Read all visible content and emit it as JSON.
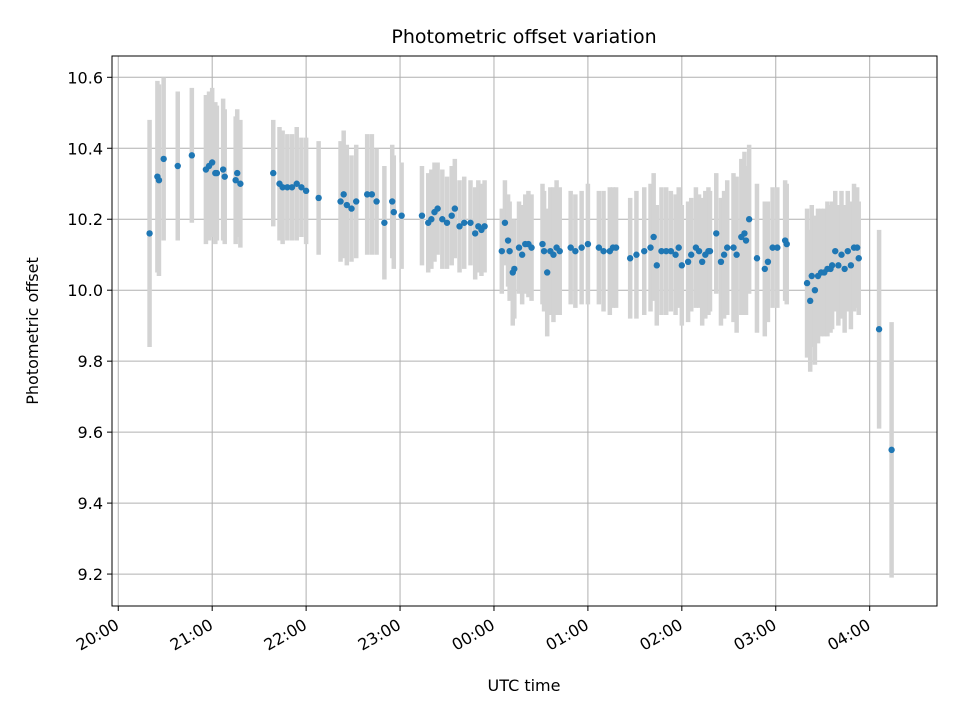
{
  "chart_data": {
    "type": "scatter",
    "title": "Photometric offset variation",
    "xlabel": "UTC time",
    "ylabel": "Photometric offset",
    "x_ticks": [
      "20:00",
      "21:00",
      "22:00",
      "23:00",
      "00:00",
      "01:00",
      "02:00",
      "03:00",
      "04:00"
    ],
    "y_ticks": [
      "9.2",
      "9.4",
      "9.6",
      "9.8",
      "10.0",
      "10.2",
      "10.4",
      "10.6"
    ],
    "x_axis_unit": "minutes after 20:00 UTC",
    "xlim": [
      -4,
      523
    ],
    "ylim": [
      9.11,
      10.66
    ],
    "grid": true,
    "colors": {
      "points": "#1f77b4",
      "error_bars": "#d3d3d3",
      "grid": "#b0b0b0"
    },
    "series": [
      {
        "points": [
          [
            20,
            10.16,
            0.32
          ],
          [
            25,
            10.32,
            0.27
          ],
          [
            26,
            10.31,
            0.27
          ],
          [
            29,
            10.37,
            0.23
          ],
          [
            38,
            10.35,
            0.21
          ],
          [
            47,
            10.38,
            0.19
          ],
          [
            56,
            10.34,
            0.21
          ],
          [
            58,
            10.35,
            0.21
          ],
          [
            60,
            10.36,
            0.21
          ],
          [
            62,
            10.33,
            0.2
          ],
          [
            63,
            10.33,
            0.19
          ],
          [
            67,
            10.34,
            0.2
          ],
          [
            68,
            10.32,
            0.19
          ],
          [
            75,
            10.31,
            0.18
          ],
          [
            76,
            10.33,
            0.18
          ],
          [
            78,
            10.3,
            0.18
          ],
          [
            99,
            10.33,
            0.15
          ],
          [
            103,
            10.3,
            0.16
          ],
          [
            105,
            10.29,
            0.16
          ],
          [
            108,
            10.29,
            0.15
          ],
          [
            111,
            10.29,
            0.15
          ],
          [
            114,
            10.3,
            0.16
          ],
          [
            117,
            10.29,
            0.14
          ],
          [
            120,
            10.28,
            0.15
          ],
          [
            128,
            10.26,
            0.16
          ],
          [
            142,
            10.25,
            0.17
          ],
          [
            144,
            10.27,
            0.18
          ],
          [
            146,
            10.24,
            0.17
          ],
          [
            149,
            10.23,
            0.15
          ],
          [
            152,
            10.25,
            0.16
          ],
          [
            159,
            10.27,
            0.17
          ],
          [
            162,
            10.27,
            0.17
          ],
          [
            165,
            10.25,
            0.15
          ],
          [
            170,
            10.19,
            0.16
          ],
          [
            175,
            10.25,
            0.16
          ],
          [
            176,
            10.22,
            0.16
          ],
          [
            181,
            10.21,
            0.15
          ],
          [
            194,
            10.21,
            0.14
          ],
          [
            198,
            10.19,
            0.14
          ],
          [
            200,
            10.2,
            0.14
          ],
          [
            202,
            10.22,
            0.14
          ],
          [
            204,
            10.23,
            0.13
          ],
          [
            207,
            10.2,
            0.14
          ],
          [
            210,
            10.19,
            0.13
          ],
          [
            213,
            10.21,
            0.14
          ],
          [
            215,
            10.23,
            0.14
          ],
          [
            218,
            10.18,
            0.13
          ],
          [
            221,
            10.19,
            0.13
          ],
          [
            225,
            10.19,
            0.12
          ],
          [
            228,
            10.16,
            0.13
          ],
          [
            230,
            10.18,
            0.13
          ],
          [
            232,
            10.17,
            0.13
          ],
          [
            234,
            10.18,
            0.13
          ],
          [
            245,
            10.11,
            0.12
          ],
          [
            247,
            10.19,
            0.12
          ],
          [
            249,
            10.14,
            0.13
          ],
          [
            250,
            10.11,
            0.14
          ],
          [
            252,
            10.05,
            0.15
          ],
          [
            253,
            10.06,
            0.14
          ],
          [
            256,
            10.12,
            0.13
          ],
          [
            258,
            10.1,
            0.14
          ],
          [
            260,
            10.13,
            0.14
          ],
          [
            262,
            10.13,
            0.15
          ],
          [
            264,
            10.12,
            0.15
          ],
          [
            271,
            10.13,
            0.17
          ],
          [
            272,
            10.11,
            0.17
          ],
          [
            274,
            10.05,
            0.18
          ],
          [
            276,
            10.11,
            0.18
          ],
          [
            278,
            10.1,
            0.19
          ],
          [
            280,
            10.12,
            0.19
          ],
          [
            282,
            10.11,
            0.18
          ],
          [
            289,
            10.12,
            0.16
          ],
          [
            292,
            10.11,
            0.16
          ],
          [
            296,
            10.12,
            0.16
          ],
          [
            300,
            10.13,
            0.17
          ],
          [
            307,
            10.12,
            0.16
          ],
          [
            310,
            10.11,
            0.17
          ],
          [
            314,
            10.11,
            0.18
          ],
          [
            316,
            10.12,
            0.17
          ],
          [
            318,
            10.12,
            0.17
          ],
          [
            327,
            10.09,
            0.17
          ],
          [
            331,
            10.1,
            0.18
          ],
          [
            336,
            10.11,
            0.18
          ],
          [
            340,
            10.12,
            0.18
          ],
          [
            342,
            10.15,
            0.18
          ],
          [
            344,
            10.07,
            0.17
          ],
          [
            347,
            10.11,
            0.18
          ],
          [
            350,
            10.11,
            0.18
          ],
          [
            353,
            10.11,
            0.17
          ],
          [
            356,
            10.1,
            0.17
          ],
          [
            358,
            10.12,
            0.17
          ],
          [
            360,
            10.07,
            0.17
          ],
          [
            364,
            10.08,
            0.17
          ],
          [
            366,
            10.1,
            0.16
          ],
          [
            369,
            10.12,
            0.17
          ],
          [
            371,
            10.11,
            0.16
          ],
          [
            373,
            10.08,
            0.18
          ],
          [
            375,
            10.1,
            0.18
          ],
          [
            377,
            10.11,
            0.18
          ],
          [
            378,
            10.11,
            0.17
          ],
          [
            382,
            10.16,
            0.17
          ],
          [
            385,
            10.08,
            0.18
          ],
          [
            387,
            10.1,
            0.18
          ],
          [
            389,
            10.12,
            0.19
          ],
          [
            393,
            10.12,
            0.21
          ],
          [
            395,
            10.1,
            0.22
          ],
          [
            398,
            10.15,
            0.22
          ],
          [
            400,
            10.16,
            0.23
          ],
          [
            401,
            10.14,
            0.21
          ],
          [
            403,
            10.2,
            0.21
          ],
          [
            408,
            10.09,
            0.21
          ],
          [
            413,
            10.06,
            0.19
          ],
          [
            415,
            10.08,
            0.17
          ],
          [
            418,
            10.12,
            0.17
          ],
          [
            421,
            10.12,
            0.17
          ],
          [
            426,
            10.14,
            0.17
          ],
          [
            427,
            10.13,
            0.17
          ],
          [
            440,
            10.02,
            0.21
          ],
          [
            442,
            9.97,
            0.2
          ],
          [
            443,
            10.04,
            0.2
          ],
          [
            445,
            10.0,
            0.21
          ],
          [
            447,
            10.04,
            0.19
          ],
          [
            449,
            10.05,
            0.18
          ],
          [
            451,
            10.05,
            0.18
          ],
          [
            453,
            10.06,
            0.19
          ],
          [
            455,
            10.06,
            0.18
          ],
          [
            456,
            10.07,
            0.18
          ],
          [
            458,
            10.11,
            0.17
          ],
          [
            460,
            10.07,
            0.17
          ],
          [
            462,
            10.1,
            0.18
          ],
          [
            464,
            10.06,
            0.18
          ],
          [
            466,
            10.11,
            0.17
          ],
          [
            468,
            10.07,
            0.18
          ],
          [
            470,
            10.12,
            0.18
          ],
          [
            472,
            10.12,
            0.17
          ],
          [
            473,
            10.09,
            0.16
          ],
          [
            486,
            9.89,
            0.28
          ],
          [
            494,
            9.55,
            0.36
          ]
        ]
      }
    ]
  }
}
